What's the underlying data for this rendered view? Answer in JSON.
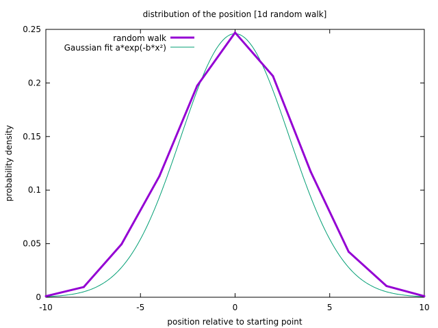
{
  "chart_data": {
    "type": "line",
    "title": "distribution of the position [1d random walk]",
    "xlabel": "position relative to starting point",
    "ylabel": "probability density",
    "xlim": [
      -10,
      10
    ],
    "ylim": [
      0,
      0.25
    ],
    "xticks": [
      -10,
      -5,
      0,
      5,
      10
    ],
    "xtick_labels": [
      "-10",
      "-5",
      "0",
      "5",
      "10"
    ],
    "yticks": [
      0,
      0.05,
      0.1,
      0.15,
      0.2,
      0.25
    ],
    "ytick_labels": [
      "0",
      "0.05",
      "0.1",
      "0.15",
      "0.2",
      "0.25"
    ],
    "grid": false,
    "legend_position": "top-left",
    "series": [
      {
        "name": "random walk",
        "color": "#9400d3",
        "style": "thick",
        "x": [
          -10,
          -8,
          -6,
          -4,
          -2,
          0,
          2,
          4,
          6,
          8,
          10
        ],
        "y": [
          0.001,
          0.0095,
          0.0495,
          0.113,
          0.1975,
          0.247,
          0.2065,
          0.117,
          0.0425,
          0.0105,
          0.001
        ]
      },
      {
        "name": "Gaussian fit a*exp(-b*x²)",
        "color": "#009e73",
        "style": "thin",
        "function": {
          "a": 0.246,
          "b": 0.0605
        }
      }
    ]
  }
}
